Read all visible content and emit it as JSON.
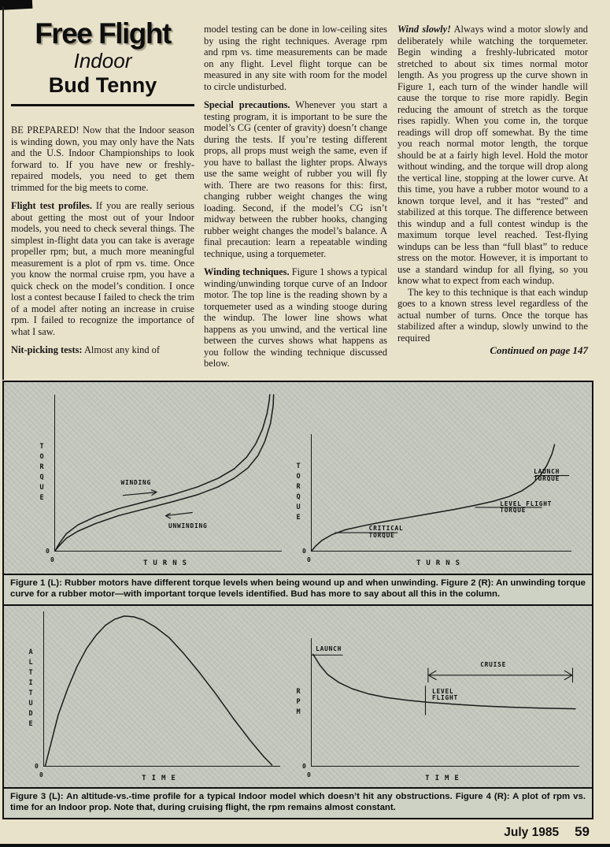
{
  "masthead": {
    "title": "Free Flight",
    "subtitle": "Indoor",
    "author": "Bud Tenny"
  },
  "columns": {
    "col1": {
      "paragraphs": [
        {
          "lead": "BE PREPARED!",
          "text": " Now that the Indoor season is winding down, you may only have the Nats and the U.S. Indoor Championships to look forward to. If you have new or freshly-repaired models, you need to get them trimmed for the big meets to come."
        },
        {
          "lead": "Flight test profiles.",
          "text": " If you are really serious about getting the most out of your Indoor models, you need to check several things. The simplest in-flight data you can take is average propeller rpm; but, a much more meaningful measurement is a plot of rpm vs. time. Once you know the normal cruise rpm, you have a quick check on the model’s condition. I once lost a contest because I failed to check the trim of a model after noting an increase in cruise rpm. I failed to recognize the importance of what I saw."
        },
        {
          "lead": "Nit-picking tests:",
          "text": " Almost any kind of"
        }
      ]
    },
    "col2": {
      "paragraphs": [
        {
          "lead": "",
          "text": "model testing can be done in low-ceiling sites by using the right techniques. Average rpm and rpm vs. time measurements can be made on any flight. Level flight torque can be measured in any site with room for the model to circle undisturbed."
        },
        {
          "lead": "Special precautions.",
          "text": " Whenever you start a testing program, it is important to be sure the model’s CG (center of gravity) doesn’t change during the tests. If you’re testing different props, all props must weigh the same, even if you have to ballast the lighter props. Always use the same weight of rubber you will fly with. There are two reasons for this: first, changing rubber weight changes the wing loading. Second, if the model’s CG isn’t midway between the rubber hooks, changing rubber weight changes the model’s balance. A final precaution: learn a repeatable winding technique, using a torquemeter."
        },
        {
          "lead": "Winding techniques.",
          "text": " Figure 1 shows a typical winding/unwinding torque curve of an Indoor motor. The top line is the reading shown by a torquemeter used as a winding stooge during the windup. The lower line shows what happens as you unwind, and the vertical line between the curves shows what happens as you follow the winding technique discussed below."
        }
      ]
    },
    "col3": {
      "paragraphs": [
        {
          "lead": "Wind slowly!",
          "text": " Always wind a motor slowly and deliberately while watching the torquemeter. Begin winding a freshly-lubricated motor stretched to about six times normal motor length. As you progress up the curve shown in Figure 1, each turn of the winder handle will cause the torque to rise more rapidly. Begin reducing the amount of stretch as the torque rises rapidly. When you come in, the torque readings will drop off somewhat. By the time you reach normal motor length, the torque should be at a fairly high level. Hold the motor without winding, and the torque will drop along the vertical line, stopping at the lower curve. At this time, you have a rubber motor wound to a known torque level, and it has “rested” and stabilized at this torque. The difference between this windup and a full contest windup is the maximum torque level reached. Test-flying windups can be less than “full blast” to reduce stress on the motor. However, it is important to use a standard windup for all flying, so you know what to expect from each windup."
        },
        {
          "lead": "",
          "text": "The key to this technique is that each windup goes to a known stress level regardless of the actual number of turns. Once the torque has stabilized after a windup, slowly unwind to the required"
        }
      ],
      "continued": "Continued on page 147"
    }
  },
  "figures": {
    "caption1": "Figure 1 (L): Rubber motors have different torque levels when being wound up and when unwinding. Figure 2 (R): An unwinding torque curve for a rubber motor—with important torque levels identified. Bud has more to say about all this in the column.",
    "caption2": "Figure 3 (L): An altitude-vs.-time profile for a typical Indoor model which doesn’t hit any obstructions. Figure 4 (R): A plot of rpm vs. time for an Indoor prop. Note that, during cruising flight, the rpm remains almost constant."
  },
  "chart_data": [
    {
      "id": "fig1",
      "type": "line",
      "title": "Figure 1",
      "xlabel": "TURNS",
      "ylabel": "TORQUE",
      "origin": "0",
      "annotations": {
        "winding": "WINDING",
        "unwinding": "UNWINDING"
      },
      "lines": [
        {
          "name": "winding-curve",
          "w": 1.5,
          "points": [
            [
              0,
              0
            ],
            [
              0.02,
              0.05
            ],
            [
              0.05,
              0.11
            ],
            [
              0.1,
              0.165
            ],
            [
              0.18,
              0.22
            ],
            [
              0.28,
              0.27
            ],
            [
              0.4,
              0.315
            ],
            [
              0.52,
              0.36
            ],
            [
              0.63,
              0.41
            ],
            [
              0.72,
              0.465
            ],
            [
              0.79,
              0.525
            ],
            [
              0.845,
              0.6
            ],
            [
              0.885,
              0.685
            ],
            [
              0.915,
              0.78
            ],
            [
              0.935,
              0.88
            ],
            [
              0.945,
              0.965
            ],
            [
              0.947,
              1.0
            ]
          ]
        },
        {
          "name": "unwinding-curve",
          "w": 1.5,
          "points": [
            [
              0,
              0
            ],
            [
              0.02,
              0.035
            ],
            [
              0.05,
              0.08
            ],
            [
              0.1,
              0.125
            ],
            [
              0.18,
              0.175
            ],
            [
              0.28,
              0.225
            ],
            [
              0.4,
              0.27
            ],
            [
              0.52,
              0.315
            ],
            [
              0.63,
              0.36
            ],
            [
              0.72,
              0.41
            ],
            [
              0.79,
              0.465
            ],
            [
              0.85,
              0.53
            ],
            [
              0.895,
              0.61
            ],
            [
              0.925,
              0.7
            ],
            [
              0.95,
              0.815
            ],
            [
              0.962,
              0.93
            ],
            [
              0.964,
              1.0
            ]
          ]
        },
        {
          "name": "winding-arrow-shaft",
          "w": 1.2,
          "points": [
            [
              0.3,
              0.355
            ],
            [
              0.445,
              0.375
            ]
          ]
        },
        {
          "name": "winding-arrow-head",
          "w": 1.2,
          "points": [
            [
              0.425,
              0.39
            ],
            [
              0.448,
              0.376
            ],
            [
              0.427,
              0.357
            ]
          ]
        },
        {
          "name": "unwinding-arrow-shaft",
          "w": 1.2,
          "points": [
            [
              0.49,
              0.225
            ],
            [
              0.605,
              0.245
            ]
          ]
        },
        {
          "name": "unwinding-arrow-head",
          "w": 1.2,
          "points": [
            [
              0.508,
              0.24
            ],
            [
              0.488,
              0.2245
            ],
            [
              0.508,
              0.208
            ]
          ]
        }
      ]
    },
    {
      "id": "fig2",
      "type": "line",
      "title": "Figure 2",
      "xlabel": "TURNS",
      "ylabel": "TORQUE",
      "origin": "0",
      "annotations": {
        "critical": "CRITICAL\nTORQUE",
        "level_flight": "LEVEL FLIGHT\nTORQUE",
        "launch": "LAUNCH\nTORQUE"
      },
      "levels": [
        {
          "label": "CRITICAL TORQUE",
          "y": 0.155
        },
        {
          "label": "LEVEL FLIGHT TORQUE",
          "y": 0.372
        },
        {
          "label": "LAUNCH TORQUE",
          "y": 0.645
        }
      ],
      "lines": [
        {
          "name": "unwinding-torque-curve",
          "w": 1.5,
          "points": [
            [
              0,
              0
            ],
            [
              0.015,
              0.04
            ],
            [
              0.04,
              0.09
            ],
            [
              0.08,
              0.14
            ],
            [
              0.13,
              0.18
            ],
            [
              0.2,
              0.215
            ],
            [
              0.28,
              0.25
            ],
            [
              0.37,
              0.285
            ],
            [
              0.46,
              0.32
            ],
            [
              0.55,
              0.355
            ],
            [
              0.63,
              0.39
            ],
            [
              0.7,
              0.425
            ],
            [
              0.76,
              0.465
            ],
            [
              0.81,
              0.515
            ],
            [
              0.85,
              0.575
            ],
            [
              0.88,
              0.645
            ],
            [
              0.905,
              0.73
            ],
            [
              0.925,
              0.83
            ],
            [
              0.935,
              0.91
            ]
          ]
        },
        {
          "name": "critical-torque-line",
          "w": 1.1,
          "points": [
            [
              0.09,
              0.155
            ],
            [
              0.33,
              0.155
            ]
          ]
        },
        {
          "name": "level-flight-torque-line",
          "w": 1.1,
          "points": [
            [
              0.63,
              0.372
            ],
            [
              0.885,
              0.372
            ]
          ]
        },
        {
          "name": "launch-torque-line",
          "w": 1.1,
          "points": [
            [
              0.862,
              0.645
            ],
            [
              0.99,
              0.645
            ]
          ]
        }
      ]
    },
    {
      "id": "fig3",
      "type": "line",
      "title": "Figure 3",
      "xlabel": "TIME",
      "ylabel": "ALTITUDE",
      "origin": "0",
      "lines": [
        {
          "name": "altitude-curve",
          "w": 1.5,
          "points": [
            [
              0.005,
              0
            ],
            [
              0.03,
              0.15
            ],
            [
              0.06,
              0.33
            ],
            [
              0.1,
              0.5
            ],
            [
              0.14,
              0.645
            ],
            [
              0.18,
              0.76
            ],
            [
              0.22,
              0.845
            ],
            [
              0.26,
              0.91
            ],
            [
              0.3,
              0.95
            ],
            [
              0.34,
              0.97
            ],
            [
              0.38,
              0.965
            ],
            [
              0.42,
              0.945
            ],
            [
              0.47,
              0.9
            ],
            [
              0.53,
              0.83
            ],
            [
              0.59,
              0.73
            ],
            [
              0.66,
              0.6
            ],
            [
              0.73,
              0.46
            ],
            [
              0.8,
              0.31
            ],
            [
              0.87,
              0.17
            ],
            [
              0.93,
              0.06
            ],
            [
              0.965,
              0.005
            ]
          ]
        }
      ]
    },
    {
      "id": "fig4",
      "type": "line",
      "title": "Figure 4",
      "xlabel": "TIME",
      "ylabel": "RPM",
      "origin": "0",
      "annotations": {
        "launch": "LAUNCH",
        "level_flight": "LEVEL\nFLIGHT",
        "cruise": "CRUISE"
      },
      "lines": [
        {
          "name": "rpm-curve",
          "w": 1.5,
          "points": [
            [
              0.005,
              0.875
            ],
            [
              0.03,
              0.79
            ],
            [
              0.06,
              0.715
            ],
            [
              0.1,
              0.655
            ],
            [
              0.15,
              0.605
            ],
            [
              0.21,
              0.565
            ],
            [
              0.28,
              0.535
            ],
            [
              0.36,
              0.513
            ],
            [
              0.44,
              0.497
            ],
            [
              0.53,
              0.483
            ],
            [
              0.63,
              0.47
            ],
            [
              0.74,
              0.46
            ],
            [
              0.86,
              0.452
            ],
            [
              0.985,
              0.447
            ]
          ]
        },
        {
          "name": "launch-level-line",
          "w": 1.1,
          "points": [
            [
              0.0,
              0.868
            ],
            [
              0.115,
              0.868
            ]
          ]
        },
        {
          "name": "level-flight-tick",
          "w": 1.1,
          "points": [
            [
              0.425,
              0.4
            ],
            [
              0.425,
              0.625
            ]
          ]
        },
        {
          "name": "cruise-arrow-shaft",
          "w": 1.1,
          "points": [
            [
              0.435,
              0.71
            ],
            [
              0.975,
              0.71
            ]
          ]
        },
        {
          "name": "cruise-arrow-left-bar",
          "w": 1.1,
          "points": [
            [
              0.435,
              0.655
            ],
            [
              0.435,
              0.765
            ]
          ]
        },
        {
          "name": "cruise-arrow-right-bar",
          "w": 1.1,
          "points": [
            [
              0.975,
              0.655
            ],
            [
              0.975,
              0.765
            ]
          ]
        },
        {
          "name": "cruise-arrow-left-head",
          "w": 1.1,
          "points": [
            [
              0.465,
              0.745
            ],
            [
              0.437,
              0.71
            ],
            [
              0.465,
              0.675
            ]
          ]
        },
        {
          "name": "cruise-arrow-right-head",
          "w": 1.1,
          "points": [
            [
              0.945,
              0.745
            ],
            [
              0.973,
              0.71
            ],
            [
              0.945,
              0.675
            ]
          ]
        }
      ]
    }
  ],
  "footer": {
    "issue": "July 1985",
    "page_number": "59"
  }
}
